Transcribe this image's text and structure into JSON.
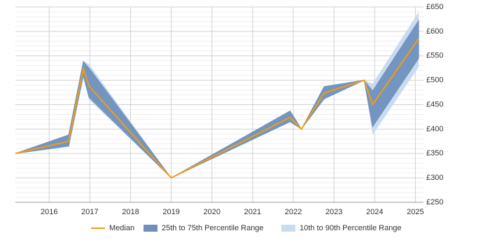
{
  "chart_data": {
    "type": "range-line",
    "x": [
      2015.17,
      2016.48,
      2016.84,
      2016.98,
      2019.0,
      2021.92,
      2022.2,
      2022.76,
      2023.74,
      2023.95,
      2025.08
    ],
    "series": [
      {
        "name": "Median",
        "color": "#f39c12",
        "values": [
          350,
          375,
          523,
          488,
          300,
          424,
          400,
          474,
          500,
          450,
          585
        ]
      },
      {
        "name": "25th to 75th Percentile Range",
        "color": "#6f90bd",
        "lower": [
          350,
          365,
          510,
          465,
          300,
          415,
          400,
          462,
          500,
          405,
          545
        ],
        "upper": [
          350,
          388,
          538,
          525,
          300,
          437,
          400,
          487,
          500,
          478,
          622
        ]
      },
      {
        "name": "10th to 90th Percentile Range",
        "color": "#c9dcef",
        "lower": [
          350,
          365,
          505,
          460,
          300,
          415,
          400,
          462,
          500,
          388,
          527
        ],
        "upper": [
          350,
          388,
          540,
          533,
          300,
          437,
          400,
          487,
          500,
          493,
          640
        ]
      }
    ],
    "xlim": [
      2015.17,
      2025.2
    ],
    "xticks": [
      2016,
      2017,
      2018,
      2019,
      2020,
      2021,
      2022,
      2023,
      2024,
      2025
    ],
    "ylim": [
      250,
      650
    ],
    "yticks": [
      {
        "value": 250,
        "label": "£250"
      },
      {
        "value": 300,
        "label": "£300"
      },
      {
        "value": 350,
        "label": "£350"
      },
      {
        "value": 400,
        "label": "£400"
      },
      {
        "value": 450,
        "label": "£450"
      },
      {
        "value": 500,
        "label": "£500"
      },
      {
        "value": 550,
        "label": "£550"
      },
      {
        "value": 600,
        "label": "£600"
      },
      {
        "value": 650,
        "label": "£650"
      }
    ],
    "grid": true
  }
}
